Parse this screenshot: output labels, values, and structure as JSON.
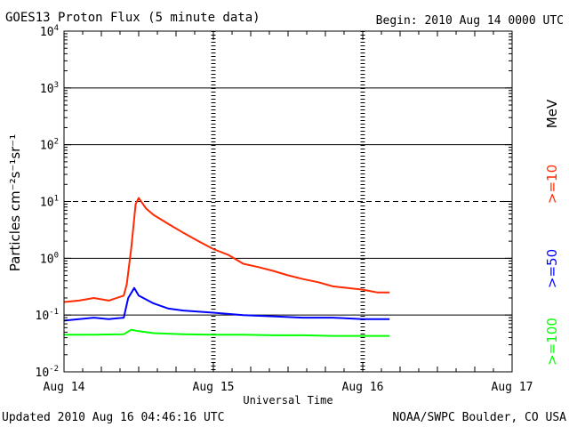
{
  "header": {
    "title": "GOES13 Proton Flux (5 minute data)",
    "begin": "Begin: 2010 Aug 14 0000 UTC"
  },
  "footer": {
    "updated": "Updated 2010 Aug 16 04:46:16 UTC",
    "source": "NOAA/SWPC Boulder, CO USA"
  },
  "chart_data": {
    "type": "line",
    "title": "GOES13 Proton Flux (5 minute data)",
    "xlabel": "Universal Time",
    "ylabel": "Particles cm⁻²s⁻¹sr⁻¹",
    "y_scale": "log",
    "ylim": [
      0.01,
      10000
    ],
    "x_unit": "days since 2010 Aug 14 0000 UTC",
    "xlim": [
      0,
      3
    ],
    "grid": true,
    "x_ticks": [
      {
        "x": 0,
        "label": "Aug 14"
      },
      {
        "x": 1,
        "label": "Aug 15"
      },
      {
        "x": 2,
        "label": "Aug 16"
      },
      {
        "x": 3,
        "label": "Aug 17"
      }
    ],
    "y_ticks": [
      {
        "value": 0.01,
        "base": "10",
        "exp": "-2"
      },
      {
        "value": 0.1,
        "base": "10",
        "exp": "-1"
      },
      {
        "value": 1,
        "base": "10",
        "exp": "0"
      },
      {
        "value": 10,
        "base": "10",
        "exp": "1"
      },
      {
        "value": 100,
        "base": "10",
        "exp": "2"
      },
      {
        "value": 1000,
        "base": "10",
        "exp": "3"
      },
      {
        "value": 10000,
        "base": "10",
        "exp": "4"
      }
    ],
    "dashed_levels": [
      10
    ],
    "unit_label": "MeV",
    "series": [
      {
        "name": ">=10",
        "color": "#ff2a00",
        "x": [
          0.0,
          0.1,
          0.2,
          0.3,
          0.4,
          0.42,
          0.45,
          0.48,
          0.5,
          0.55,
          0.6,
          0.7,
          0.8,
          0.9,
          1.0,
          1.1,
          1.2,
          1.3,
          1.4,
          1.5,
          1.6,
          1.7,
          1.8,
          1.9,
          2.0,
          2.1,
          2.18
        ],
        "y": [
          0.17,
          0.18,
          0.2,
          0.18,
          0.22,
          0.35,
          1.5,
          9.0,
          11.5,
          7.5,
          5.8,
          4.0,
          2.8,
          2.0,
          1.45,
          1.15,
          0.8,
          0.7,
          0.6,
          0.5,
          0.43,
          0.38,
          0.32,
          0.3,
          0.28,
          0.25,
          0.25
        ]
      },
      {
        "name": ">=50",
        "color": "#0000ff",
        "x": [
          0.0,
          0.1,
          0.2,
          0.3,
          0.4,
          0.43,
          0.47,
          0.5,
          0.6,
          0.7,
          0.8,
          1.0,
          1.2,
          1.4,
          1.6,
          1.8,
          2.0,
          2.18
        ],
        "y": [
          0.08,
          0.085,
          0.09,
          0.085,
          0.09,
          0.2,
          0.3,
          0.22,
          0.16,
          0.13,
          0.12,
          0.11,
          0.1,
          0.095,
          0.09,
          0.09,
          0.085,
          0.085
        ]
      },
      {
        "name": ">=100",
        "color": "#00ff00",
        "x": [
          0.0,
          0.2,
          0.4,
          0.45,
          0.5,
          0.6,
          0.8,
          1.0,
          1.2,
          1.4,
          1.6,
          1.8,
          2.0,
          2.18
        ],
        "y": [
          0.045,
          0.045,
          0.046,
          0.055,
          0.052,
          0.048,
          0.046,
          0.045,
          0.045,
          0.044,
          0.044,
          0.043,
          0.043,
          0.043
        ]
      }
    ]
  }
}
